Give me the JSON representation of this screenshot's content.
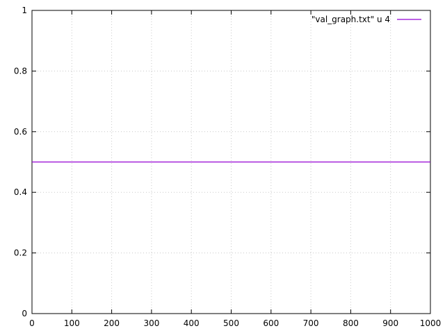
{
  "chart_data": {
    "type": "line",
    "title": "",
    "xlabel": "",
    "ylabel": "",
    "xlim": [
      0,
      1000
    ],
    "ylim": [
      0,
      1
    ],
    "x_ticks": [
      0,
      100,
      200,
      300,
      400,
      500,
      600,
      700,
      800,
      900,
      1000
    ],
    "y_ticks": [
      0,
      0.2,
      0.4,
      0.6,
      0.8,
      1
    ],
    "x_tick_labels": [
      "0",
      "100",
      "200",
      "300",
      "400",
      "500",
      "600",
      "700",
      "800",
      "900",
      "1000"
    ],
    "y_tick_labels": [
      "0",
      "0.2",
      "0.4",
      "0.6",
      "0.8",
      "1"
    ],
    "grid": true,
    "legend_position": "top-right",
    "series": [
      {
        "name": "\"val_graph.txt\" u 4",
        "color": "#9400d3",
        "x": [
          0,
          1000
        ],
        "y": [
          0.5,
          0.5
        ]
      }
    ]
  }
}
